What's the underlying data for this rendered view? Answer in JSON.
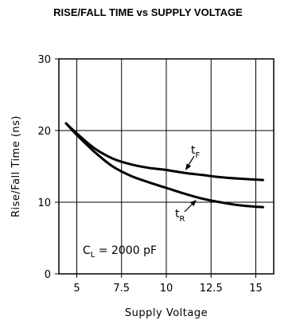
{
  "chart_data": {
    "type": "line",
    "title": "RISE/FALL TIME vs SUPPLY VOLTAGE",
    "xlabel": "Supply Voltage",
    "ylabel": "Rise/Fall Time (ns)",
    "xlim": [
      4,
      16
    ],
    "ylim": [
      0,
      30
    ],
    "xticks": [
      5,
      7.5,
      10,
      12.5,
      15
    ],
    "xtick_labels": [
      "5",
      "7.5",
      "10",
      "12.5",
      "15"
    ],
    "yticks": [
      0,
      10,
      20,
      30
    ],
    "ytick_labels": [
      "0",
      "10",
      "20",
      "30"
    ],
    "grid": true,
    "series": [
      {
        "name": "tF",
        "x": [
          4.4,
          5,
          6,
          7,
          8,
          9,
          10,
          11,
          12,
          13,
          14,
          15.4
        ],
        "values": [
          21,
          19.6,
          17.5,
          16.1,
          15.3,
          14.8,
          14.5,
          14.1,
          13.8,
          13.5,
          13.3,
          13.1
        ]
      },
      {
        "name": "tR",
        "x": [
          4.4,
          5,
          6,
          7,
          8,
          9,
          10,
          11,
          12,
          13,
          14,
          15.4
        ],
        "values": [
          21,
          19.4,
          17.0,
          15.0,
          13.7,
          12.8,
          12.0,
          11.2,
          10.5,
          10.0,
          9.6,
          9.3
        ]
      }
    ],
    "annotations": {
      "tF_label": {
        "main": "t",
        "sub": "F"
      },
      "tR_label": {
        "main": "t",
        "sub": "R"
      },
      "condition": {
        "prefix": "C",
        "sub": "L",
        "suffix": " = 2000 pF"
      }
    }
  }
}
